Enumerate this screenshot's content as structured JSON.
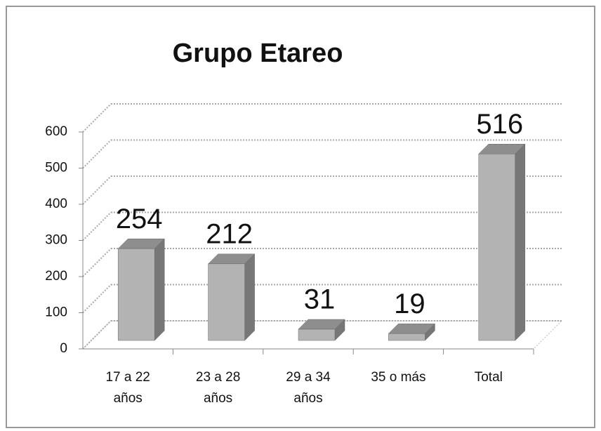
{
  "chart_data": {
    "type": "bar3d",
    "title": "Grupo Etareo",
    "categories": [
      "17 a 22 años",
      "23 a 28 años",
      "29 a 34 años",
      "35 o más",
      "Total"
    ],
    "values": [
      254,
      212,
      31,
      19,
      516
    ],
    "color": "#b3b3b3",
    "ylim": [
      0,
      600
    ],
    "yticks": [
      0,
      100,
      200,
      300,
      400,
      500,
      600
    ],
    "grid": true
  }
}
